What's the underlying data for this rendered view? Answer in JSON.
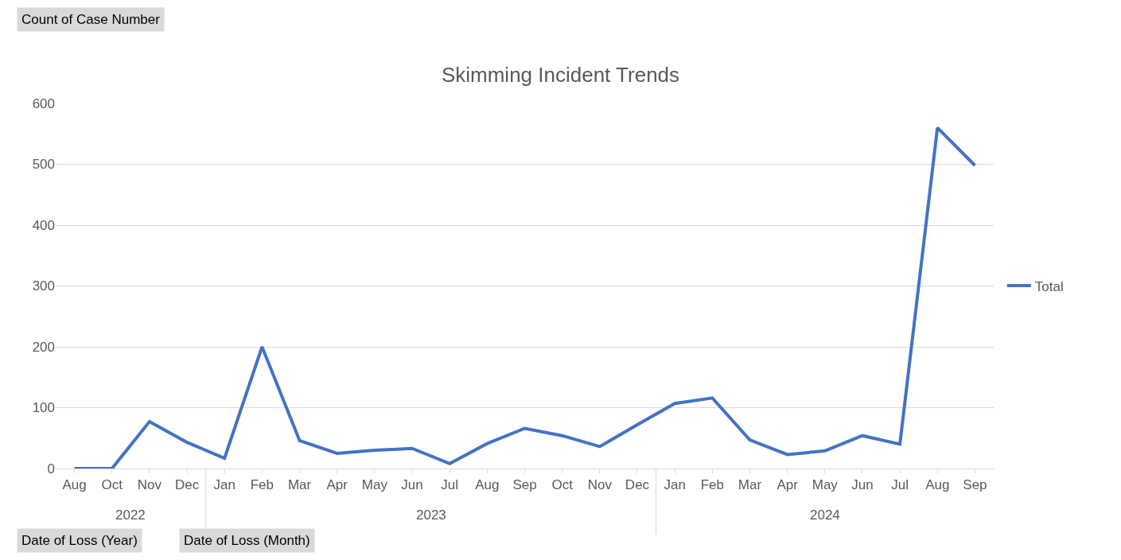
{
  "chart_data": {
    "type": "line",
    "title": "Skimming Incident Trends",
    "categories": [
      "Aug",
      "Oct",
      "Nov",
      "Dec",
      "Jan",
      "Feb",
      "Mar",
      "Apr",
      "May",
      "Jun",
      "Jul",
      "Aug",
      "Sep",
      "Oct",
      "Nov",
      "Dec",
      "Jan",
      "Feb",
      "Mar",
      "Apr",
      "May",
      "Jun",
      "Jul",
      "Aug",
      "Sep"
    ],
    "series": [
      {
        "name": "Total",
        "color": "#4472c4",
        "values": [
          0,
          0,
          77,
          43,
          17,
          200,
          46,
          25,
          30,
          33,
          8,
          41,
          66,
          54,
          36,
          72,
          107,
          116,
          47,
          23,
          29,
          54,
          40,
          560,
          498
        ]
      }
    ],
    "ylim": [
      0,
      600
    ],
    "yticks": [
      0,
      100,
      200,
      300,
      400,
      500,
      600
    ],
    "grid": "y",
    "legend": "right",
    "marker": "none",
    "line_style": "solid",
    "annotations": [
      "2022",
      "2023",
      "2024",
      "Count of Case Number",
      "Date of Loss (Year)",
      "Date of Loss (Month)"
    ]
  }
}
